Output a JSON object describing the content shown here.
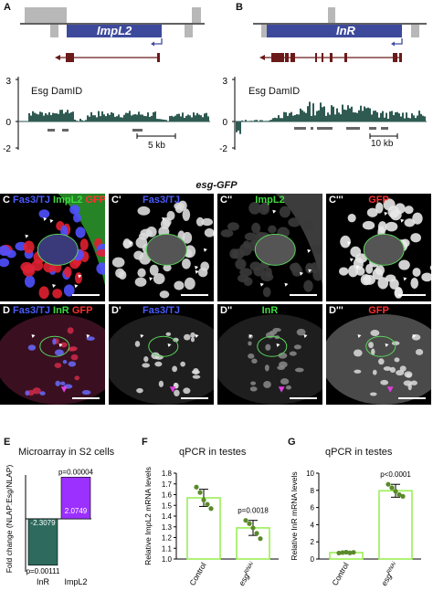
{
  "panels": {
    "A": {
      "letter": "A",
      "gene": "ImpL2",
      "track_label": "Esg DamID",
      "ymax": "3",
      "yzero": "0",
      "ymin": "-2",
      "scale": "5 kb"
    },
    "B": {
      "letter": "B",
      "gene": "InR",
      "track_label": "Esg DamID",
      "ymax": "3",
      "yzero": "0",
      "ymin": "-2",
      "scale": "10 kb"
    },
    "esg_title": "esg-GFP",
    "row1": [
      {
        "letter": "C",
        "parts": [
          {
            "t": "Fas3/TJ ",
            "c": "#4a5cff"
          },
          {
            "t": "ImpL2 ",
            "c": "#3fdc3f"
          },
          {
            "t": "GFP",
            "c": "#ff3030"
          }
        ]
      },
      {
        "letter": "C'",
        "parts": [
          {
            "t": "Fas3/TJ",
            "c": "#4a5cff"
          }
        ]
      },
      {
        "letter": "C''",
        "parts": [
          {
            "t": "ImpL2",
            "c": "#3fdc3f"
          }
        ]
      },
      {
        "letter": "C'''",
        "parts": [
          {
            "t": "GFP",
            "c": "#ff3030"
          }
        ]
      }
    ],
    "row2": [
      {
        "letter": "D",
        "parts": [
          {
            "t": "Fas3/TJ ",
            "c": "#4a5cff"
          },
          {
            "t": "InR ",
            "c": "#3fdc3f"
          },
          {
            "t": "GFP",
            "c": "#ff3030"
          }
        ]
      },
      {
        "letter": "D'",
        "parts": [
          {
            "t": "Fas3/TJ",
            "c": "#4a5cff"
          }
        ]
      },
      {
        "letter": "D''",
        "parts": [
          {
            "t": "InR",
            "c": "#3fdc3f"
          }
        ]
      },
      {
        "letter": "D'''",
        "parts": [
          {
            "t": "GFP",
            "c": "#ff3030"
          }
        ]
      }
    ],
    "E": {
      "letter": "E",
      "title": "Microarray in S2 cells"
    },
    "F": {
      "letter": "F",
      "title": "qPCR in testes"
    },
    "G": {
      "letter": "G",
      "title": "qPCR in testes"
    }
  },
  "chart_data": [
    {
      "id": "E",
      "type": "bar",
      "title": "Microarray in S2 cells",
      "ylabel": "Fold change (NLAP:Esg/NLAP)",
      "categories": [
        "InR",
        "ImpL2"
      ],
      "values": [
        -2.3079,
        2.0749
      ],
      "value_labels": [
        "-2.3079",
        "2.0749"
      ],
      "pvalues": [
        "p=0.00111",
        "p=0.00004"
      ],
      "colors": [
        "#2e6b5e",
        "#9b30ff"
      ]
    },
    {
      "id": "F",
      "type": "bar",
      "title": "qPCR in testes",
      "ylabel": "Relative ImpL2 mRNA levels",
      "categories": [
        "Control",
        "esgRNAi"
      ],
      "values": [
        1.57,
        1.29
      ],
      "errors": [
        0.08,
        0.07
      ],
      "points": [
        [
          1.67,
          1.62,
          1.55,
          1.51,
          1.47
        ],
        [
          1.36,
          1.33,
          1.29,
          1.24,
          1.19
        ]
      ],
      "ylim": [
        1.0,
        1.8
      ],
      "yticks": [
        "1.0",
        "1.1",
        "1.2",
        "1.3",
        "1.4",
        "1.5",
        "1.6",
        "1.7",
        "1.8"
      ],
      "pvalue": "p=0.0018",
      "bar_color": "#9bee55",
      "point_color": "#5a8a2a"
    },
    {
      "id": "G",
      "type": "bar",
      "title": "qPCR in testes",
      "ylabel": "Relative InR mRNA levels",
      "categories": [
        "Control",
        "esgRNAi"
      ],
      "values": [
        0.75,
        7.95
      ],
      "errors": [
        0.1,
        0.75
      ],
      "points": [
        [
          0.7,
          0.75,
          0.8,
          0.72,
          0.78
        ],
        [
          8.7,
          8.3,
          7.9,
          7.5,
          7.3
        ]
      ],
      "ylim": [
        0,
        10
      ],
      "yticks": [
        "0",
        "2",
        "4",
        "6",
        "8",
        "10"
      ],
      "pvalue": "p<0.0001",
      "bar_color": "#9bee55",
      "point_color": "#5a8a2a"
    }
  ]
}
